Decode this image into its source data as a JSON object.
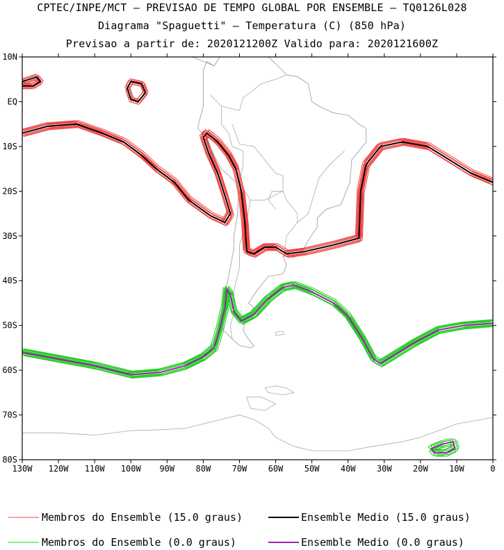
{
  "header": {
    "line1": "CPTEC/INPE/MCT — PREVISAO DE TEMPO GLOBAL POR ENSEMBLE — TQ0126L028",
    "line2": "Diagrama \"Spaguetti\" — Temperatura (C) (850 hPa)",
    "line3": "Previsao a partir de: 2020121200Z  Valido para: 2020121600Z"
  },
  "map": {
    "lon_range": [
      -130,
      0
    ],
    "lat_range": [
      -80,
      10
    ],
    "lat_ticks": [
      {
        "value": 10,
        "label": "10N"
      },
      {
        "value": 0,
        "label": "EQ"
      },
      {
        "value": -10,
        "label": "10S"
      },
      {
        "value": -20,
        "label": "20S"
      },
      {
        "value": -30,
        "label": "30S"
      },
      {
        "value": -40,
        "label": "40S"
      },
      {
        "value": -50,
        "label": "50S"
      },
      {
        "value": -60,
        "label": "60S"
      },
      {
        "value": -70,
        "label": "70S"
      },
      {
        "value": -80,
        "label": "80S"
      }
    ],
    "lon_ticks": [
      {
        "value": -130,
        "label": "130W"
      },
      {
        "value": -120,
        "label": "120W"
      },
      {
        "value": -110,
        "label": "110W"
      },
      {
        "value": -100,
        "label": "100W"
      },
      {
        "value": -90,
        "label": "90W"
      },
      {
        "value": -80,
        "label": "80W"
      },
      {
        "value": -70,
        "label": "70W"
      },
      {
        "value": -60,
        "label": "60W"
      },
      {
        "value": -50,
        "label": "50W"
      },
      {
        "value": -40,
        "label": "40W"
      },
      {
        "value": -30,
        "label": "30W"
      },
      {
        "value": -20,
        "label": "20W"
      },
      {
        "value": -10,
        "label": "10W"
      },
      {
        "value": 0,
        "label": "0"
      }
    ],
    "colors": {
      "members_15": "#f04545",
      "mean_15": "#000000",
      "members_0": "#22cc22",
      "mean_0": "#9922aa",
      "coast": "#aaaaaa"
    },
    "contours": {
      "mean_15": [
        [
          [
            -130,
            -7
          ],
          [
            -123,
            -5.5
          ],
          [
            -115,
            -5
          ],
          [
            -108,
            -7
          ],
          [
            -102,
            -9
          ],
          [
            -97,
            -12
          ],
          [
            -93,
            -15
          ],
          [
            -88,
            -18
          ],
          [
            -84,
            -22
          ],
          [
            -78,
            -25.5
          ],
          [
            -74,
            -27
          ],
          [
            -72.5,
            -25
          ],
          [
            -74,
            -21
          ],
          [
            -76,
            -16
          ],
          [
            -78.5,
            -11.5
          ],
          [
            -80,
            -8
          ],
          [
            -79,
            -7
          ],
          [
            -76,
            -9
          ],
          [
            -73,
            -12
          ],
          [
            -71,
            -15
          ],
          [
            -69.5,
            -20
          ],
          [
            -68.5,
            -27
          ],
          [
            -68,
            -33.5
          ],
          [
            -66,
            -34
          ],
          [
            -63,
            -32.5
          ],
          [
            -60,
            -32.5
          ],
          [
            -57,
            -34
          ],
          [
            -52,
            -33.5
          ],
          [
            -44,
            -32
          ],
          [
            -37,
            -30.5
          ],
          [
            -36.5,
            -20
          ],
          [
            -35,
            -14
          ],
          [
            -31,
            -10
          ],
          [
            -25,
            -9
          ],
          [
            -18,
            -10
          ],
          [
            -12,
            -13
          ],
          [
            -6,
            -16
          ],
          [
            0,
            -18
          ]
        ]
      ],
      "mean_15_small": [
        [
          -130,
          3.5
        ],
        [
          -127,
          3.5
        ],
        [
          -125,
          4.5
        ],
        [
          -126,
          5.5
        ],
        [
          -128,
          5
        ],
        [
          -130,
          4.5
        ]
      ],
      "mean_15_small2": [
        [
          -100,
          4.5
        ],
        [
          -97,
          4
        ],
        [
          -96,
          2
        ],
        [
          -98,
          0
        ],
        [
          -100,
          0.5
        ],
        [
          -101,
          3
        ],
        [
          -100,
          4.5
        ]
      ],
      "mean_0": [
        [
          [
            -130,
            -56
          ],
          [
            -120,
            -57.5
          ],
          [
            -110,
            -59
          ],
          [
            -100,
            -61
          ],
          [
            -92,
            -60.5
          ],
          [
            -85,
            -59
          ],
          [
            -80,
            -57
          ],
          [
            -77,
            -55
          ],
          [
            -75.5,
            -51
          ],
          [
            -74,
            -46
          ],
          [
            -73.5,
            -42
          ],
          [
            -72.5,
            -43
          ],
          [
            -71.5,
            -47
          ],
          [
            -69.5,
            -49
          ],
          [
            -66,
            -47.5
          ],
          [
            -62,
            -44
          ],
          [
            -58,
            -41.5
          ],
          [
            -55,
            -41
          ],
          [
            -50,
            -42.5
          ],
          [
            -44,
            -45
          ],
          [
            -40,
            -48
          ],
          [
            -36,
            -53
          ],
          [
            -33,
            -57.5
          ],
          [
            -31,
            -58.5
          ],
          [
            -28,
            -57
          ],
          [
            -22,
            -54
          ],
          [
            -15,
            -51
          ],
          [
            -8,
            -50
          ],
          [
            0,
            -49.5
          ]
        ]
      ],
      "mean_0_small": [
        [
          -17,
          -77.5
        ],
        [
          -14,
          -76.5
        ],
        [
          -11,
          -76
        ],
        [
          -10.5,
          -77.5
        ],
        [
          -13,
          -78.5
        ],
        [
          -16,
          -78.5
        ],
        [
          -17,
          -77.5
        ]
      ]
    }
  },
  "legend": {
    "members_15": "Membros do Ensemble (15.0 graus)",
    "mean_15": "Ensemble Medio (15.0 graus)",
    "members_0": "Membros do Ensemble (0.0 graus)",
    "mean_0": "Ensemble Medio (0.0 graus)"
  }
}
